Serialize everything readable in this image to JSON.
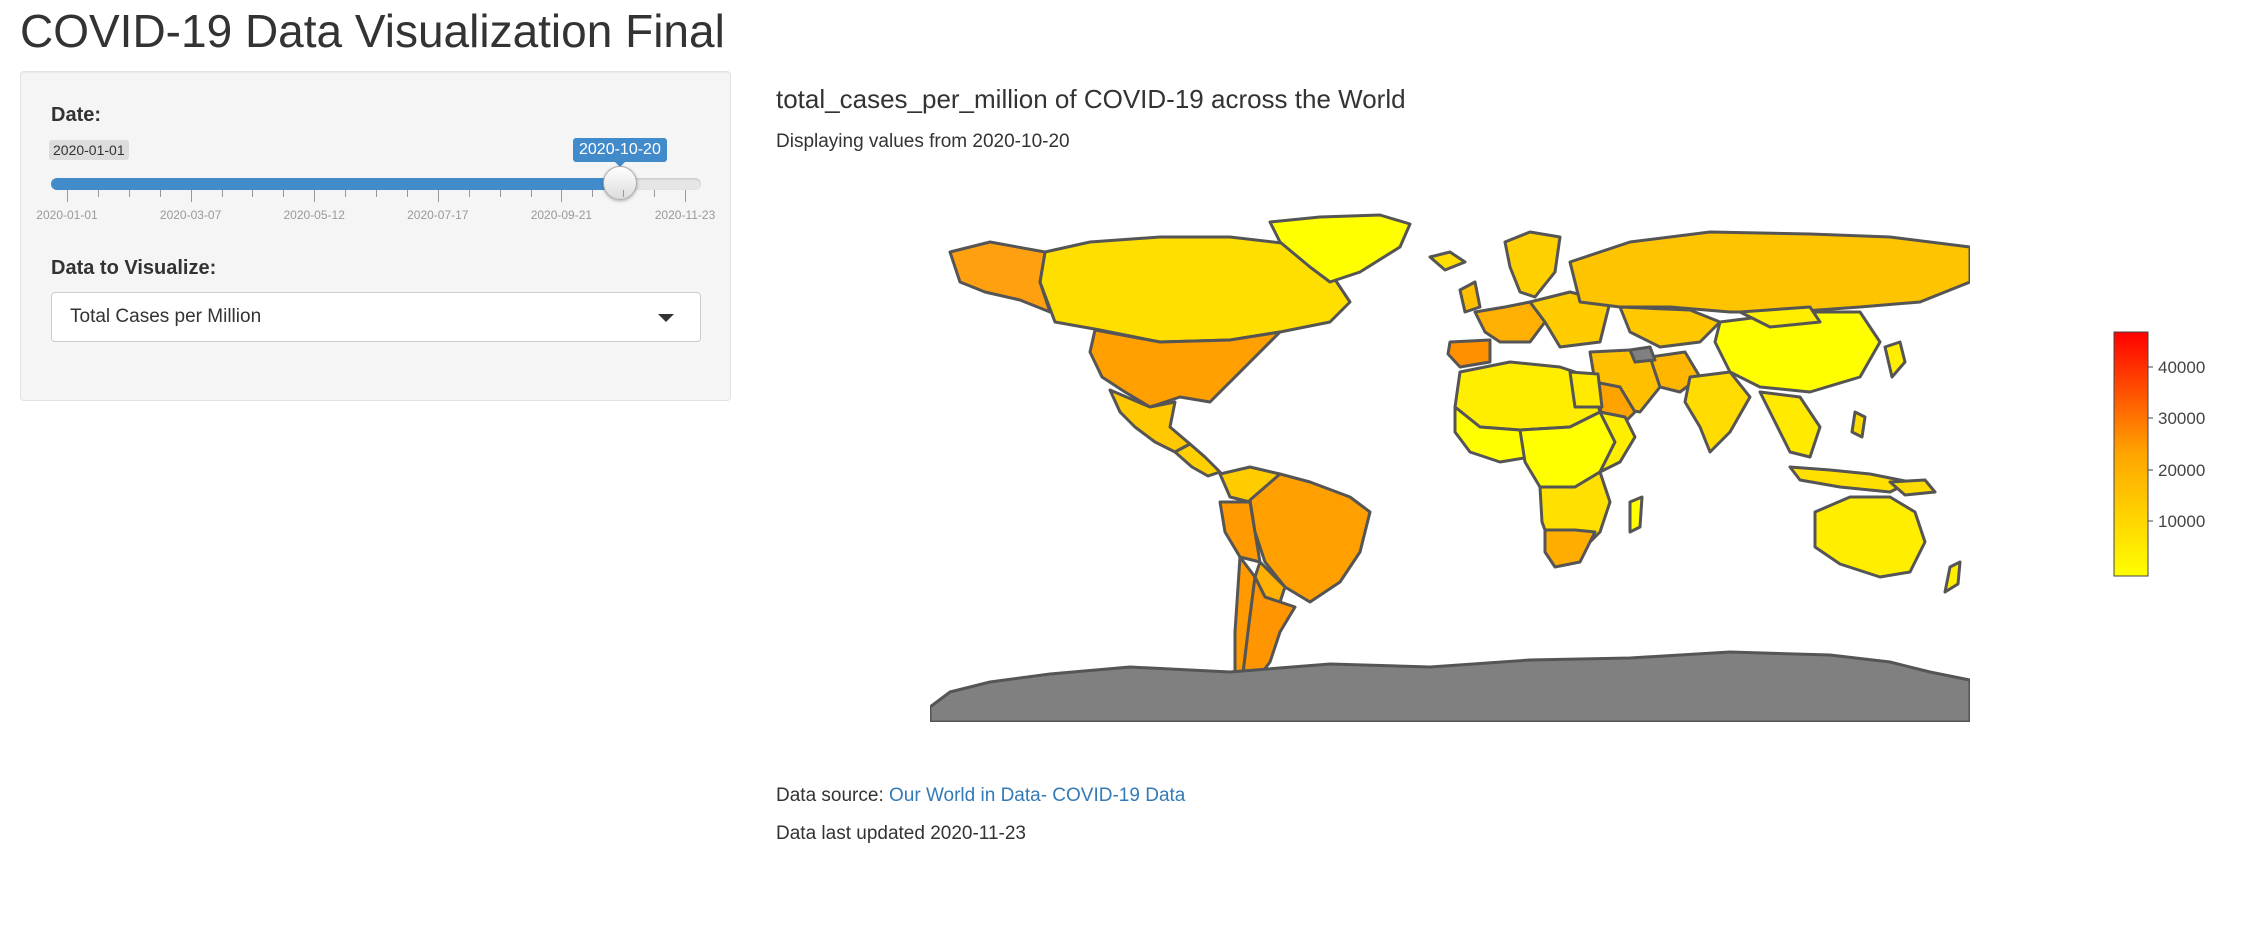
{
  "app": {
    "title": "COVID-19 Data Visualization Final"
  },
  "sidebar": {
    "date_label": "Date:",
    "slider": {
      "min": "2020-01-01",
      "current": "2020-10-20",
      "progress_fraction": 0.874,
      "tick_labels": [
        "2020-01-01",
        "2020-03-07",
        "2020-05-12",
        "2020-07-17",
        "2020-09-21",
        "2020-11-23"
      ],
      "accent_color": "#428bca"
    },
    "data_label": "Data to Visualize:",
    "select": {
      "value": "Total Cases per Million",
      "icon": "caret-down-icon"
    }
  },
  "main": {
    "title": "total_cases_per_million of COVID-19 across the World",
    "subtitle": "Displaying values from 2020-10-20",
    "map": {
      "colorscale": [
        "#ffff00",
        "#ffa500",
        "#ff0000"
      ],
      "no_data_color": "#808080",
      "colorbar_ticks": [
        "40000",
        "30000",
        "20000",
        "10000"
      ]
    },
    "source_prefix": "Data source: ",
    "source_link": "Our World in Data- COVID-19 Data",
    "updated": "Data last updated 2020-11-23"
  }
}
